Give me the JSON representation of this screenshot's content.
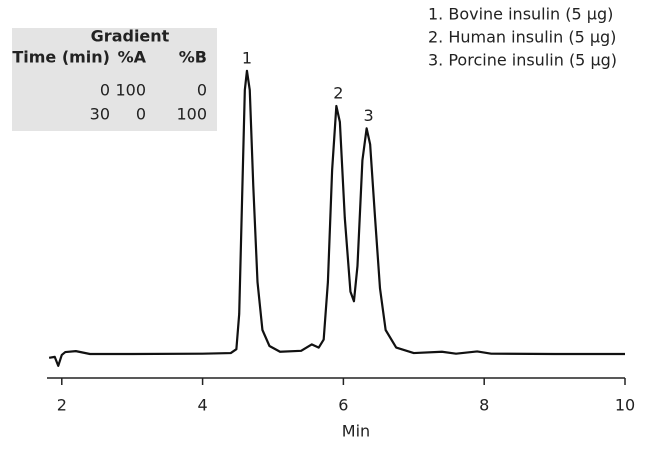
{
  "chart_data": {
    "type": "line",
    "x_label": "Min",
    "x": [
      1.82,
      1.9,
      1.95,
      2.0,
      2.05,
      2.2,
      2.4,
      3.0,
      4.0,
      4.4,
      4.48,
      4.52,
      4.56,
      4.6,
      4.63,
      4.67,
      4.72,
      4.78,
      4.85,
      4.95,
      5.1,
      5.4,
      5.55,
      5.65,
      5.72,
      5.78,
      5.84,
      5.9,
      5.95,
      6.02,
      6.1,
      6.15,
      6.2,
      6.27,
      6.33,
      6.38,
      6.45,
      6.52,
      6.6,
      6.75,
      7.0,
      7.4,
      7.6,
      7.9,
      8.1,
      9.0,
      10.0
    ],
    "series": [
      {
        "color": "#111111",
        "values": [
          6.3,
          6.6,
          3.8,
          7.2,
          8.1,
          8.4,
          7.5,
          7.5,
          7.6,
          7.8,
          9,
          20,
          55,
          90,
          96,
          90,
          60,
          30,
          15,
          10,
          8.2,
          8.5,
          10.5,
          9.5,
          12,
          30,
          65,
          85,
          80,
          50,
          27,
          24,
          35,
          68,
          78,
          73,
          50,
          28,
          15,
          9.5,
          7.8,
          8.2,
          7.6,
          8.3,
          7.6,
          7.5,
          7.5
        ]
      }
    ],
    "xlim": [
      1.79,
      10
    ],
    "ylim": [
      0,
      100
    ],
    "xticks": [
      2,
      4,
      6,
      8,
      10
    ],
    "annotations": [
      "1",
      "2",
      "3"
    ],
    "legend": [
      "1. Bovine insulin (5 μg)",
      "2. Human insulin (5 μg)",
      "3. Porcine insulin (5 μg)"
    ],
    "gradient": {
      "title": "Gradient",
      "header": [
        "Time (min)",
        "%A",
        "%B"
      ],
      "rows": [
        [
          "0",
          "100",
          "0"
        ],
        [
          "30",
          "0",
          "100"
        ]
      ]
    }
  }
}
